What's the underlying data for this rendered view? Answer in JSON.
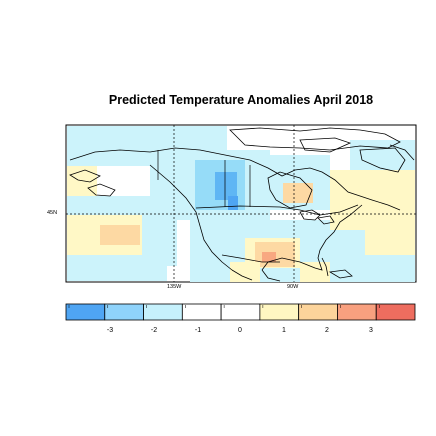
{
  "title": "Predicted Temperature Anomalies April 2018",
  "axes": {
    "lat_label": "45N",
    "lon_labels": [
      "135W",
      "90W"
    ]
  },
  "colorbar": {
    "tick_labels": [
      "-3",
      "-2",
      "-1",
      "0",
      "1",
      "2",
      "3"
    ],
    "colors": [
      "#4fa5f3",
      "#8fd3fb",
      "#c6f1fc",
      "#ffffff",
      "#ffffff",
      "#fff7c2",
      "#fcd49b",
      "#f8a07f",
      "#ee6d5f"
    ]
  },
  "map_regions": {
    "ocean_base_color": "#ffffff",
    "land_anomaly_colors": {
      "cool_light": "#ccf3fb",
      "cool_mid": "#96dcf8",
      "cool_strong": "#5fb6f4",
      "warm_light": "#fff8c6",
      "warm_mid": "#fdd9a3",
      "warm_strong": "#f8a881"
    }
  }
}
